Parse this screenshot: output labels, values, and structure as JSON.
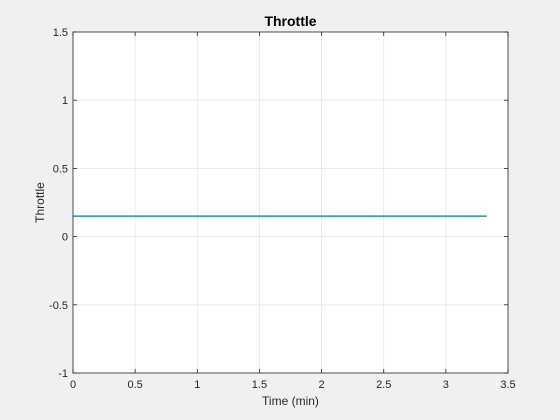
{
  "chart_data": {
    "type": "line",
    "title": "Throttle",
    "xlabel": "Time (min)",
    "ylabel": "Throttle",
    "xlim": [
      0,
      3.5
    ],
    "ylim": [
      -1,
      1.5
    ],
    "xticks": [
      0,
      0.5,
      1,
      1.5,
      2,
      2.5,
      3,
      3.5
    ],
    "xtick_labels": [
      "0",
      "0.5",
      "1",
      "1.5",
      "2",
      "2.5",
      "3",
      "3.5"
    ],
    "yticks": [
      -1,
      -0.5,
      0,
      0.5,
      1,
      1.5
    ],
    "ytick_labels": [
      "-1",
      "-0.5",
      "0",
      "0.5",
      "1",
      "1.5"
    ],
    "grid": true,
    "series": [
      {
        "x": [
          0,
          3.33
        ],
        "y": [
          0.15,
          0.15
        ],
        "color": "#0072BD"
      }
    ],
    "colors": {
      "background": "#f0f0f0",
      "plot_area": "#ffffff",
      "grid": "#e6e6e6",
      "axis": "#262626"
    }
  }
}
